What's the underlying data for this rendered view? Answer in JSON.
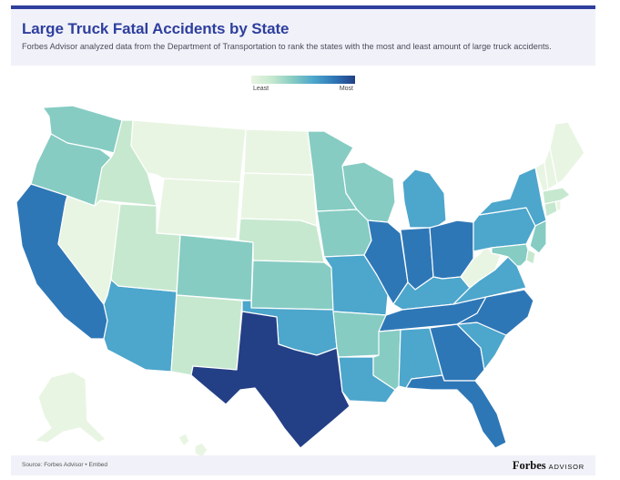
{
  "header": {
    "title": "Large Truck Fatal Accidents by State",
    "subtitle": "Forbes Advisor analyzed data from the Department of Transportation to rank the states with the most and least amount of large truck accidents."
  },
  "legend": {
    "least_label": "Least",
    "most_label": "Most",
    "colors": [
      "#e9f5e3",
      "#c6e8cf",
      "#86ccc3",
      "#4da6cc",
      "#2e77b7",
      "#233f86"
    ]
  },
  "map": {
    "states": [
      {
        "id": "WA",
        "level": 2
      },
      {
        "id": "OR",
        "level": 2
      },
      {
        "id": "CA",
        "level": 4
      },
      {
        "id": "ID",
        "level": 1
      },
      {
        "id": "NV",
        "level": 0
      },
      {
        "id": "AZ",
        "level": 3
      },
      {
        "id": "MT",
        "level": 0
      },
      {
        "id": "WY",
        "level": 0
      },
      {
        "id": "UT",
        "level": 1
      },
      {
        "id": "CO",
        "level": 2
      },
      {
        "id": "NM",
        "level": 1
      },
      {
        "id": "ND",
        "level": 0
      },
      {
        "id": "SD",
        "level": 0
      },
      {
        "id": "NE",
        "level": 1
      },
      {
        "id": "KS",
        "level": 2
      },
      {
        "id": "OK",
        "level": 3
      },
      {
        "id": "TX",
        "level": 5
      },
      {
        "id": "MN",
        "level": 2
      },
      {
        "id": "IA",
        "level": 2
      },
      {
        "id": "MO",
        "level": 3
      },
      {
        "id": "AR",
        "level": 2
      },
      {
        "id": "LA",
        "level": 3
      },
      {
        "id": "WI",
        "level": 2
      },
      {
        "id": "IL",
        "level": 4
      },
      {
        "id": "MI",
        "level": 3
      },
      {
        "id": "IN",
        "level": 4
      },
      {
        "id": "OH",
        "level": 4
      },
      {
        "id": "KY",
        "level": 3
      },
      {
        "id": "TN",
        "level": 4
      },
      {
        "id": "MS",
        "level": 2
      },
      {
        "id": "AL",
        "level": 3
      },
      {
        "id": "GA",
        "level": 4
      },
      {
        "id": "FL",
        "level": 4
      },
      {
        "id": "SC",
        "level": 3
      },
      {
        "id": "NC",
        "level": 4
      },
      {
        "id": "VA",
        "level": 3
      },
      {
        "id": "WV",
        "level": 0
      },
      {
        "id": "PA",
        "level": 3
      },
      {
        "id": "NY",
        "level": 3
      },
      {
        "id": "NJ",
        "level": 2
      },
      {
        "id": "DE",
        "level": 1
      },
      {
        "id": "MD",
        "level": 2
      },
      {
        "id": "CT",
        "level": 1
      },
      {
        "id": "RI",
        "level": 0
      },
      {
        "id": "MA",
        "level": 1
      },
      {
        "id": "VT",
        "level": 0
      },
      {
        "id": "NH",
        "level": 0
      },
      {
        "id": "ME",
        "level": 0
      },
      {
        "id": "AK",
        "level": 0
      },
      {
        "id": "HI",
        "level": 0
      }
    ]
  },
  "footer": {
    "source": "Source: Forbes Advisor • Embed",
    "brand_name": "Forbes",
    "brand_suffix": "ADVISOR"
  }
}
